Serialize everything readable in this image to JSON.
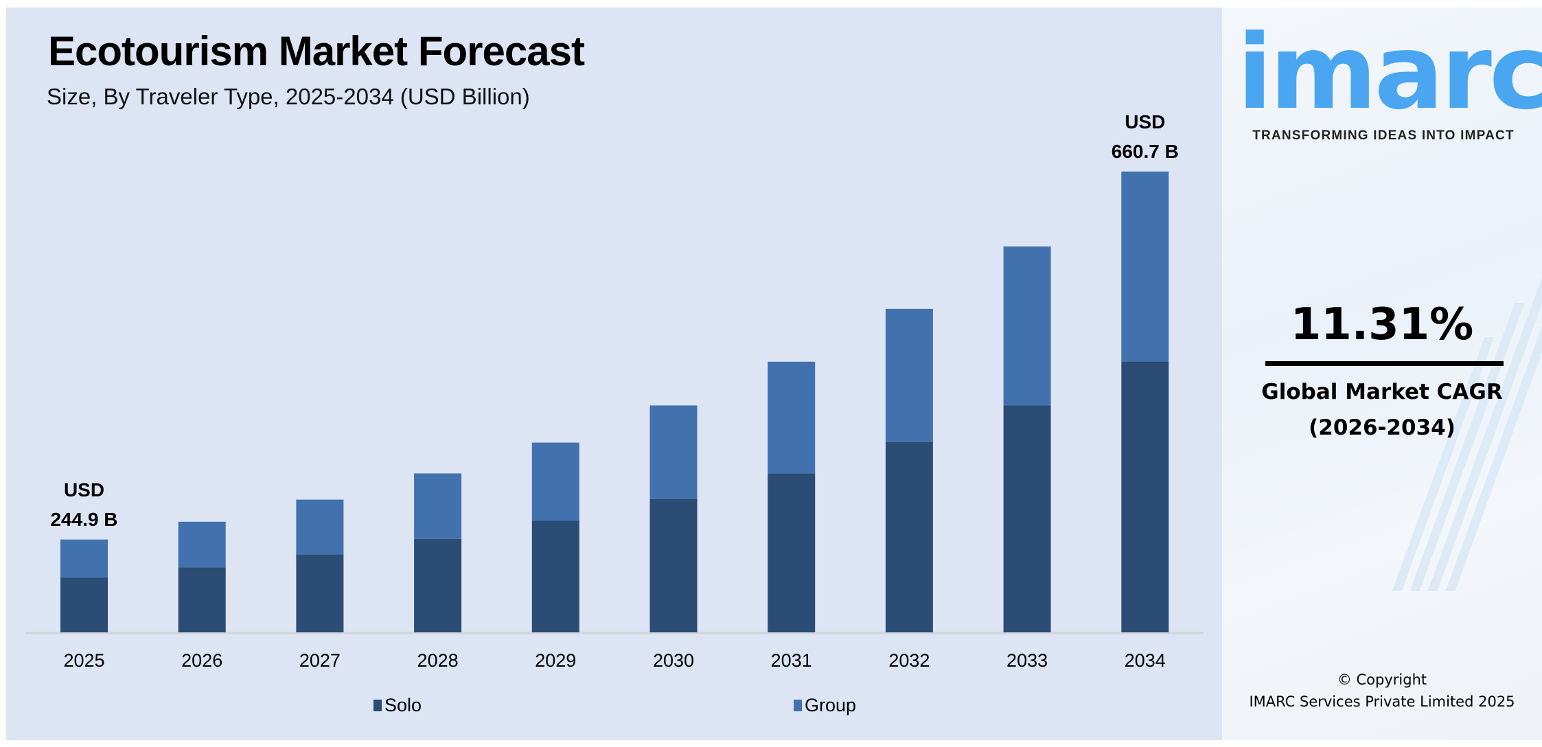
{
  "chart_data": {
    "type": "bar",
    "stacked": true,
    "title": "Ecotourism Market Forecast",
    "subtitle": "Size, By Traveler Type, 2025-2034 (USD Billion)",
    "xlabel": "",
    "ylabel": "",
    "grid": false,
    "legend_position": "bottom",
    "categories": [
      "2025",
      "2026",
      "2027",
      "2028",
      "2029",
      "2030",
      "2031",
      "2032",
      "2033",
      "2034"
    ],
    "series": [
      {
        "name": "Solo",
        "color": "#2B4C74",
        "values": [
          144.0,
          155.8,
          170.5,
          187.9,
          208.4,
          233.1,
          262.1,
          297.2,
          338.7,
          388.5
        ]
      },
      {
        "name": "Group",
        "color": "#4172AE",
        "values": [
          100.9,
          109.2,
          119.5,
          131.7,
          146.0,
          163.3,
          183.7,
          208.3,
          237.3,
          272.2
        ]
      }
    ],
    "totals": [
      244.9,
      265.0,
      290.0,
      319.6,
      354.4,
      396.4,
      445.8,
      505.5,
      576.0,
      660.7
    ],
    "annotations": [
      {
        "category": "2025",
        "line1": "USD",
        "line2": "244.9 B"
      },
      {
        "category": "2034",
        "line1": "USD",
        "line2": "660.7 B"
      }
    ]
  },
  "side_panel": {
    "logo_text": "imarc",
    "tagline": "TRANSFORMING IDEAS INTO IMPACT",
    "cagr_value": "11.31%",
    "cagr_label": "Global Market CAGR",
    "cagr_period": "(2026-2034)",
    "copyright_line1": "© Copyright",
    "copyright_line2": "IMARC Services Private Limited 2025"
  },
  "colors": {
    "background": "#DDE4F3",
    "solo": "#2B4C74",
    "group": "#4172AE",
    "logo": "#4AA6F0"
  }
}
